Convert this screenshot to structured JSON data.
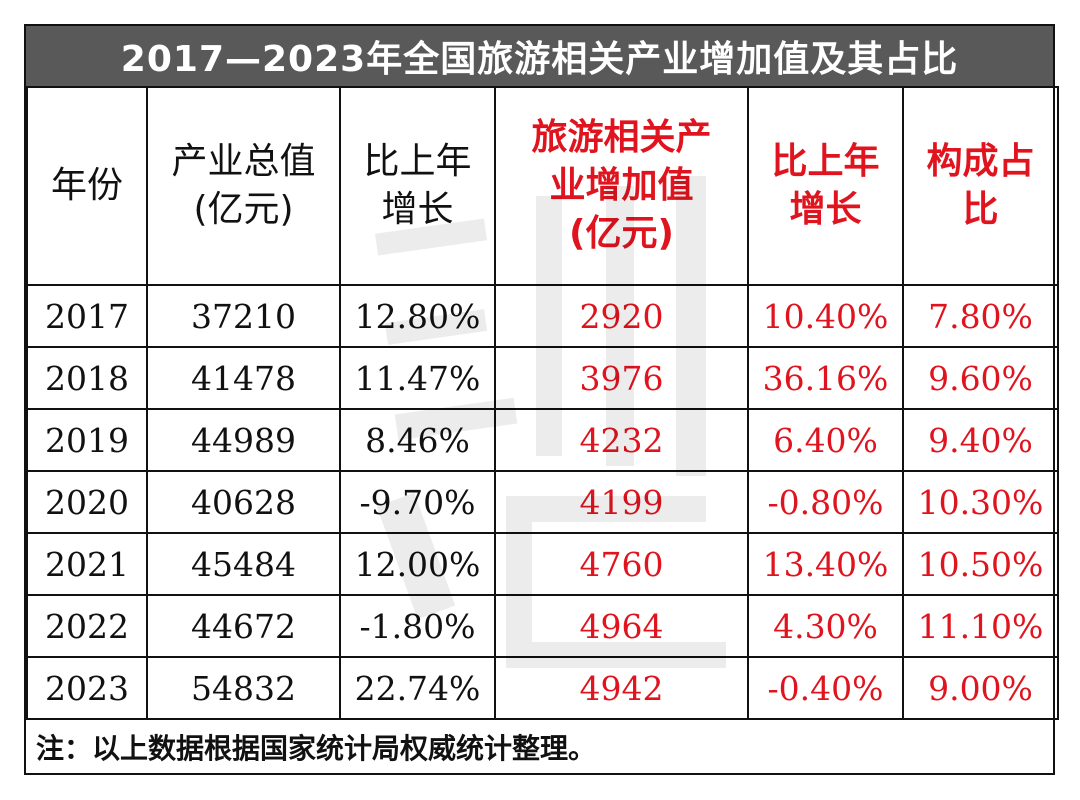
{
  "title": "2017—2023年全国旅游相关产业增加值及其占比",
  "columns": [
    {
      "lines": [
        "年份"
      ],
      "accent": false
    },
    {
      "lines": [
        "产业总值",
        "(亿元)"
      ],
      "accent": false
    },
    {
      "lines": [
        "比上年",
        "增长"
      ],
      "accent": false
    },
    {
      "lines": [
        "旅游相关产",
        "业增加值",
        "(亿元)"
      ],
      "accent": true
    },
    {
      "lines": [
        "比上年",
        "增长"
      ],
      "accent": true
    },
    {
      "lines": [
        "构成占",
        "比"
      ],
      "accent": true
    }
  ],
  "rows": [
    [
      "2017",
      "37210",
      "12.80%",
      "2920",
      "10.40%",
      "7.80%"
    ],
    [
      "2018",
      "41478",
      "11.47%",
      "3976",
      "36.16%",
      "9.60%"
    ],
    [
      "2019",
      "44989",
      "8.46%",
      "4232",
      "6.40%",
      "9.40%"
    ],
    [
      "2020",
      "40628",
      "-9.70%",
      "4199",
      "-0.80%",
      "10.30%"
    ],
    [
      "2021",
      "45484",
      "12.00%",
      "4760",
      "13.40%",
      "10.50%"
    ],
    [
      "2022",
      "44672",
      "-1.80%",
      "4964",
      "4.30%",
      "11.10%"
    ],
    [
      "2023",
      "54832",
      "22.74%",
      "4942",
      "-0.40%",
      "9.00%"
    ]
  ],
  "note": "注：以上数据根据国家统计局权威统计整理。",
  "colors": {
    "title_bg": "#595959",
    "accent": "#e0141e",
    "border": "#111111"
  }
}
